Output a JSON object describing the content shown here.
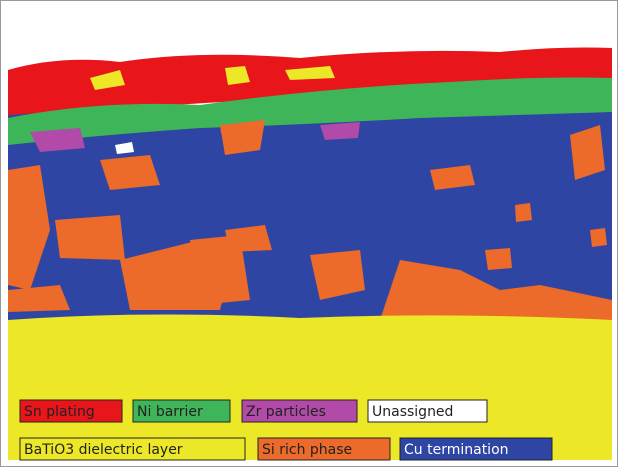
{
  "legend": {
    "items": [
      {
        "label": "Sn plating",
        "color": "#e8151b"
      },
      {
        "label": "Ni barrier",
        "color": "#3fb55a"
      },
      {
        "label": "Zr particles",
        "color": "#b14aa8"
      },
      {
        "label": "Unassigned",
        "color": "#ffffff"
      },
      {
        "label": "BaTiO3 dielectric layer",
        "color": "#ece827"
      },
      {
        "label": "Si rich phase",
        "color": "#ec6a2a"
      },
      {
        "label": "Cu termination",
        "color": "#2f45a3"
      }
    ]
  }
}
